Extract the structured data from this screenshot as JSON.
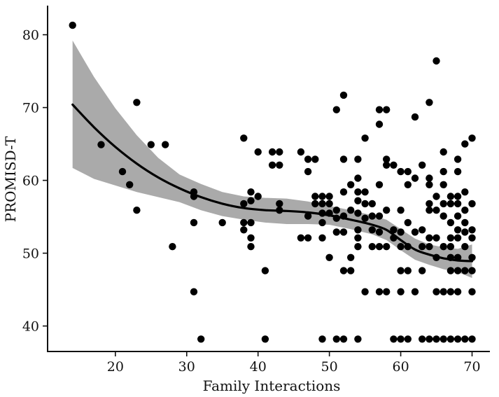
{
  "chart_data": {
    "type": "scatter",
    "title": "",
    "xlabel": "Family Interactions",
    "ylabel": "PROMISD-T",
    "xlim": [
      10.5,
      72.5
    ],
    "ylim": [
      36.5,
      84
    ],
    "x_ticks": [
      20,
      30,
      40,
      50,
      60,
      70
    ],
    "y_ticks": [
      40,
      50,
      60,
      70,
      80
    ],
    "grid": false,
    "legend": "none",
    "colors": {
      "points": "#000000",
      "smooth_line": "#000000",
      "confidence_band": "#aaaaaa",
      "axis": "#111111"
    },
    "points": [
      [
        14,
        81.3
      ],
      [
        18,
        64.9
      ],
      [
        21,
        61.2
      ],
      [
        22,
        59.4
      ],
      [
        23,
        70.7
      ],
      [
        23,
        55.9
      ],
      [
        25,
        64.9
      ],
      [
        27,
        64.9
      ],
      [
        28,
        50.9
      ],
      [
        31,
        58.4
      ],
      [
        31,
        57.8
      ],
      [
        31,
        54.2
      ],
      [
        31,
        44.7
      ],
      [
        32,
        38.2
      ],
      [
        35,
        54.2
      ],
      [
        38,
        65.8
      ],
      [
        38,
        56.8
      ],
      [
        38,
        54.2
      ],
      [
        38,
        53.2
      ],
      [
        39,
        58.4
      ],
      [
        39,
        57.2
      ],
      [
        39,
        54.2
      ],
      [
        39,
        52.1
      ],
      [
        39,
        50.9
      ],
      [
        40,
        63.9
      ],
      [
        40,
        57.8
      ],
      [
        41,
        47.6
      ],
      [
        41,
        38.2
      ],
      [
        42,
        63.9
      ],
      [
        42,
        62.1
      ],
      [
        43,
        63.9
      ],
      [
        43,
        62.1
      ],
      [
        43,
        56.8
      ],
      [
        43,
        55.9
      ],
      [
        46,
        63.9
      ],
      [
        46,
        52.1
      ],
      [
        47,
        62.9
      ],
      [
        47,
        61.2
      ],
      [
        47,
        55.1
      ],
      [
        47,
        52.1
      ],
      [
        48,
        62.9
      ],
      [
        48,
        57.8
      ],
      [
        48,
        56.8
      ],
      [
        49,
        57.8
      ],
      [
        49,
        56.8
      ],
      [
        49,
        55.5
      ],
      [
        49,
        54.2
      ],
      [
        49,
        52.1
      ],
      [
        49,
        38.2
      ],
      [
        50,
        57.8
      ],
      [
        50,
        56.8
      ],
      [
        50,
        55.5
      ],
      [
        50,
        49.4
      ],
      [
        51,
        69.7
      ],
      [
        51,
        55.9
      ],
      [
        51,
        54.8
      ],
      [
        51,
        52.9
      ],
      [
        51,
        38.2
      ],
      [
        52,
        71.7
      ],
      [
        52,
        62.9
      ],
      [
        52,
        58.4
      ],
      [
        52,
        55.1
      ],
      [
        52,
        52.9
      ],
      [
        52,
        47.6
      ],
      [
        52,
        38.2
      ],
      [
        53,
        59.4
      ],
      [
        53,
        55.9
      ],
      [
        53,
        49.4
      ],
      [
        53,
        47.6
      ],
      [
        54,
        62.9
      ],
      [
        54,
        60.3
      ],
      [
        54,
        58.4
      ],
      [
        54,
        57.2
      ],
      [
        54,
        55.5
      ],
      [
        54,
        53.2
      ],
      [
        54,
        52.1
      ],
      [
        54,
        50.9
      ],
      [
        54,
        38.2
      ],
      [
        55,
        65.8
      ],
      [
        55,
        58.4
      ],
      [
        55,
        56.8
      ],
      [
        55,
        54.8
      ],
      [
        55,
        44.7
      ],
      [
        56,
        56.8
      ],
      [
        56,
        55.1
      ],
      [
        56,
        53.2
      ],
      [
        56,
        50.9
      ],
      [
        57,
        69.7
      ],
      [
        57,
        67.7
      ],
      [
        57,
        59.4
      ],
      [
        57,
        55.1
      ],
      [
        57,
        52.9
      ],
      [
        57,
        50.9
      ],
      [
        57,
        44.7
      ],
      [
        58,
        69.7
      ],
      [
        58,
        62.9
      ],
      [
        58,
        62.1
      ],
      [
        58,
        55.9
      ],
      [
        58,
        50.9
      ],
      [
        58,
        44.7
      ],
      [
        59,
        62.1
      ],
      [
        59,
        53.2
      ],
      [
        59,
        52.1
      ],
      [
        59,
        38.2
      ],
      [
        60,
        61.2
      ],
      [
        60,
        55.9
      ],
      [
        60,
        52.9
      ],
      [
        60,
        50.9
      ],
      [
        60,
        47.6
      ],
      [
        60,
        44.7
      ],
      [
        60,
        38.2
      ],
      [
        61,
        61.2
      ],
      [
        61,
        59.4
      ],
      [
        61,
        54.2
      ],
      [
        61,
        50.9
      ],
      [
        61,
        47.6
      ],
      [
        61,
        38.2
      ],
      [
        62,
        68.7
      ],
      [
        62,
        60.3
      ],
      [
        62,
        52.9
      ],
      [
        62,
        44.7
      ],
      [
        63,
        62.1
      ],
      [
        63,
        53.2
      ],
      [
        63,
        50.9
      ],
      [
        63,
        47.6
      ],
      [
        63,
        38.2
      ],
      [
        64,
        70.7
      ],
      [
        64,
        60.3
      ],
      [
        64,
        59.4
      ],
      [
        64,
        56.8
      ],
      [
        64,
        55.9
      ],
      [
        64,
        52.1
      ],
      [
        64,
        50.9
      ],
      [
        64,
        38.2
      ],
      [
        65,
        76.4
      ],
      [
        65,
        57.8
      ],
      [
        65,
        55.9
      ],
      [
        65,
        52.1
      ],
      [
        65,
        49.4
      ],
      [
        65,
        44.7
      ],
      [
        65,
        38.2
      ],
      [
        66,
        63.9
      ],
      [
        66,
        61.2
      ],
      [
        66,
        59.4
      ],
      [
        66,
        56.8
      ],
      [
        66,
        55.1
      ],
      [
        66,
        50.9
      ],
      [
        66,
        44.7
      ],
      [
        66,
        38.2
      ],
      [
        67,
        57.8
      ],
      [
        67,
        56.8
      ],
      [
        67,
        54.2
      ],
      [
        67,
        52.1
      ],
      [
        67,
        50.9
      ],
      [
        67,
        49.4
      ],
      [
        67,
        47.6
      ],
      [
        67,
        44.7
      ],
      [
        67,
        38.2
      ],
      [
        68,
        62.9
      ],
      [
        68,
        61.2
      ],
      [
        68,
        57.8
      ],
      [
        68,
        56.8
      ],
      [
        68,
        55.1
      ],
      [
        68,
        53.2
      ],
      [
        68,
        52.1
      ],
      [
        68,
        49.4
      ],
      [
        68,
        47.6
      ],
      [
        68,
        44.7
      ],
      [
        68,
        38.2
      ],
      [
        69,
        65.0
      ],
      [
        69,
        58.4
      ],
      [
        69,
        55.9
      ],
      [
        69,
        54.2
      ],
      [
        69,
        52.9
      ],
      [
        69,
        50.9
      ],
      [
        69,
        47.6
      ],
      [
        69,
        38.2
      ],
      [
        70,
        65.8
      ],
      [
        70,
        56.8
      ],
      [
        70,
        53.2
      ],
      [
        70,
        52.1
      ],
      [
        70,
        49.4
      ],
      [
        70,
        47.6
      ],
      [
        70,
        44.7
      ],
      [
        70,
        38.2
      ]
    ],
    "smooth_line": {
      "x": [
        14,
        17,
        20,
        23,
        26,
        29,
        32,
        35,
        38,
        41,
        44,
        47,
        50,
        53,
        56,
        58,
        60,
        62,
        64,
        66,
        68,
        70
      ],
      "y": [
        70.4,
        67.3,
        64.6,
        62.3,
        60.4,
        58.9,
        57.7,
        56.8,
        56.2,
        55.9,
        55.8,
        55.6,
        55.2,
        54.6,
        53.9,
        53.2,
        51.8,
        50.5,
        49.8,
        49.3,
        49.0,
        48.9
      ]
    },
    "confidence_band": {
      "x": [
        14,
        17,
        20,
        23,
        26,
        29,
        32,
        35,
        38,
        41,
        44,
        47,
        50,
        53,
        56,
        58,
        60,
        62,
        64,
        66,
        68,
        70
      ],
      "upper": [
        79.2,
        74.2,
        69.9,
        66.2,
        63.1,
        60.8,
        59.5,
        58.4,
        57.8,
        57.6,
        57.5,
        57.1,
        56.5,
        55.9,
        55.2,
        54.6,
        53.3,
        52.0,
        51.2,
        50.8,
        50.6,
        51.2
      ],
      "lower": [
        61.7,
        60.2,
        59.3,
        58.4,
        57.7,
        57.0,
        55.9,
        55.1,
        54.6,
        54.2,
        54.0,
        54.0,
        53.9,
        53.3,
        52.6,
        51.8,
        50.4,
        49.1,
        48.4,
        47.8,
        47.4,
        46.6
      ]
    }
  }
}
